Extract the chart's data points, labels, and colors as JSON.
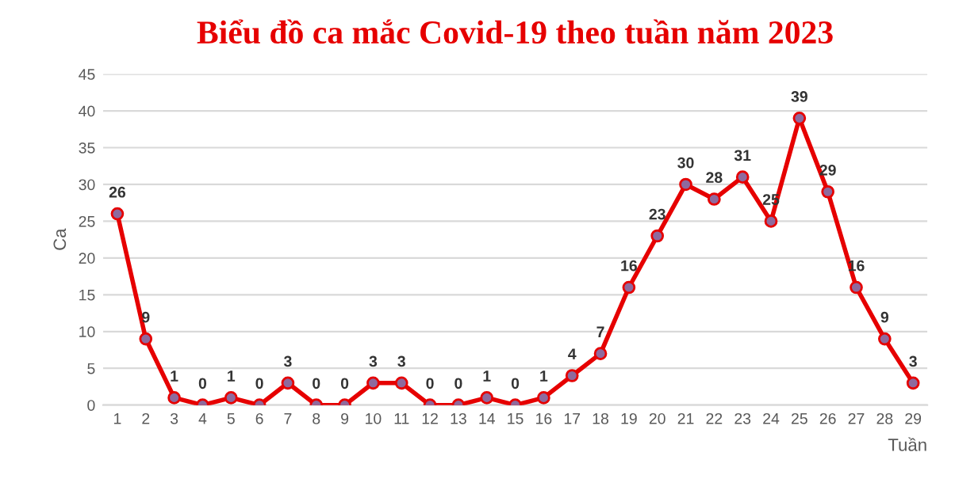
{
  "chart_data": {
    "type": "line",
    "title": "Biểu đồ ca mắc Covid-19 theo tuần năm 2023",
    "xlabel": "Tuần",
    "ylabel": "Ca",
    "categories": [
      "1",
      "2",
      "3",
      "4",
      "5",
      "6",
      "7",
      "8",
      "9",
      "10",
      "11",
      "12",
      "13",
      "14",
      "15",
      "16",
      "17",
      "18",
      "19",
      "20",
      "21",
      "22",
      "23",
      "24",
      "25",
      "26",
      "27",
      "28",
      "29"
    ],
    "series": [
      {
        "color": "#e60000",
        "values": [
          26,
          9,
          1,
          0,
          1,
          0,
          3,
          0,
          0,
          3,
          3,
          0,
          0,
          1,
          0,
          1,
          4,
          7,
          16,
          23,
          30,
          28,
          31,
          25,
          39,
          29,
          16,
          9,
          3
        ]
      }
    ],
    "ylim": [
      0,
      45
    ],
    "yticks": [
      0,
      5,
      10,
      15,
      20,
      25,
      30,
      35,
      40,
      45
    ],
    "grid": "y",
    "marker": "circle",
    "line_style": "solid",
    "data_labels": true
  }
}
